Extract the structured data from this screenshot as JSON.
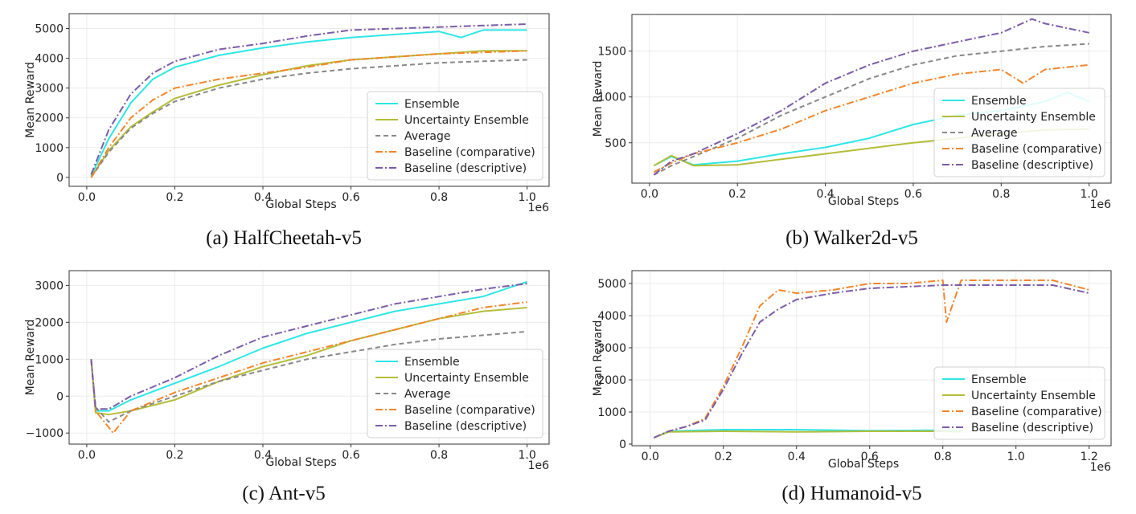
{
  "colors": {
    "Ensemble": "#2ee6e6",
    "Uncertainty Ensemble": "#b5bd3a",
    "Average": "#888888",
    "Baseline (comparative)": "#f2862b",
    "Baseline (descriptive)": "#7b5ca7"
  },
  "chart_data": [
    {
      "type": "line",
      "caption": "(a) HalfCheetah-v5",
      "xlabel": "Global Steps",
      "ylabel": "Mean Reward",
      "x_multiplier": "1e6",
      "xlim": [
        -0.04,
        1.05
      ],
      "ylim": [
        -300,
        5500
      ],
      "xticks": [
        0.0,
        0.2,
        0.4,
        0.6,
        0.8,
        1.0
      ],
      "xtick_labels": [
        "0.0",
        "0.2",
        "0.4",
        "0.6",
        "0.8",
        "1.0"
      ],
      "yticks": [
        0,
        1000,
        2000,
        3000,
        4000,
        5000
      ],
      "ytick_labels": [
        "0",
        "1000",
        "2000",
        "3000",
        "4000",
        "5000"
      ],
      "grid": true,
      "legend_position": "bottom-right",
      "legend": [
        "Ensemble",
        "Uncertainty Ensemble",
        "Average",
        "Baseline (comparative)",
        "Baseline (descriptive)"
      ],
      "series": [
        {
          "name": "Ensemble",
          "x": [
            0.01,
            0.05,
            0.1,
            0.15,
            0.2,
            0.3,
            0.4,
            0.5,
            0.6,
            0.7,
            0.8,
            0.85,
            0.9,
            1.0
          ],
          "y": [
            50,
            1300,
            2500,
            3300,
            3700,
            4100,
            4350,
            4550,
            4700,
            4800,
            4900,
            4700,
            4950,
            4950
          ]
        },
        {
          "name": "Uncertainty Ensemble",
          "x": [
            0.01,
            0.05,
            0.1,
            0.15,
            0.2,
            0.3,
            0.4,
            0.5,
            0.6,
            0.7,
            0.8,
            0.9,
            1.0
          ],
          "y": [
            0,
            900,
            1700,
            2200,
            2650,
            3100,
            3450,
            3750,
            3950,
            4050,
            4150,
            4250,
            4250
          ]
        },
        {
          "name": "Average",
          "x": [
            0.01,
            0.05,
            0.1,
            0.15,
            0.2,
            0.3,
            0.4,
            0.5,
            0.6,
            0.7,
            0.8,
            0.9,
            1.0
          ],
          "y": [
            0,
            850,
            1650,
            2150,
            2550,
            3000,
            3300,
            3500,
            3650,
            3750,
            3850,
            3900,
            3950
          ]
        },
        {
          "name": "Baseline (comparative)",
          "x": [
            0.01,
            0.05,
            0.1,
            0.15,
            0.2,
            0.3,
            0.4,
            0.5,
            0.6,
            0.7,
            0.8,
            0.9,
            1.0
          ],
          "y": [
            0,
            1000,
            2000,
            2600,
            3000,
            3300,
            3500,
            3700,
            3950,
            4050,
            4150,
            4200,
            4250
          ]
        },
        {
          "name": "Baseline (descriptive)",
          "x": [
            0.01,
            0.05,
            0.1,
            0.15,
            0.2,
            0.3,
            0.4,
            0.5,
            0.6,
            0.7,
            0.8,
            0.9,
            1.0
          ],
          "y": [
            100,
            1600,
            2800,
            3500,
            3900,
            4300,
            4500,
            4750,
            4950,
            5000,
            5050,
            5100,
            5150
          ]
        }
      ]
    },
    {
      "type": "line",
      "caption": "(b) Walker2d-v5",
      "xlabel": "Global Steps",
      "ylabel": "Mean Reward",
      "x_multiplier": "1e6",
      "xlim": [
        -0.04,
        1.05
      ],
      "ylim": [
        60,
        1900
      ],
      "xticks": [
        0.0,
        0.2,
        0.4,
        0.6,
        0.8,
        1.0
      ],
      "xtick_labels": [
        "0.0",
        "0.2",
        "0.4",
        "0.6",
        "0.8",
        "1.0"
      ],
      "yticks": [
        500,
        1000,
        1500
      ],
      "ytick_labels": [
        "500",
        "1000",
        "1500"
      ],
      "grid": true,
      "legend_position": "bottom-right",
      "legend": [
        "Ensemble",
        "Uncertainty Ensemble",
        "Average",
        "Baseline (comparative)",
        "Baseline (descriptive)"
      ],
      "series": [
        {
          "name": "Ensemble",
          "x": [
            0.01,
            0.05,
            0.1,
            0.2,
            0.3,
            0.4,
            0.5,
            0.6,
            0.7,
            0.8,
            0.9,
            0.95,
            1.0
          ],
          "y": [
            250,
            350,
            260,
            300,
            380,
            450,
            550,
            700,
            800,
            850,
            950,
            1050,
            950
          ]
        },
        {
          "name": "Uncertainty Ensemble",
          "x": [
            0.01,
            0.05,
            0.1,
            0.2,
            0.3,
            0.4,
            0.5,
            0.6,
            0.7,
            0.8,
            0.9,
            1.0
          ],
          "y": [
            250,
            360,
            250,
            260,
            320,
            380,
            440,
            500,
            550,
            600,
            640,
            650
          ]
        },
        {
          "name": "Average",
          "x": [
            0.01,
            0.05,
            0.1,
            0.2,
            0.3,
            0.4,
            0.5,
            0.6,
            0.7,
            0.8,
            0.9,
            1.0
          ],
          "y": [
            150,
            250,
            350,
            550,
            800,
            1000,
            1200,
            1350,
            1450,
            1500,
            1550,
            1580
          ]
        },
        {
          "name": "Baseline (comparative)",
          "x": [
            0.01,
            0.05,
            0.1,
            0.2,
            0.3,
            0.4,
            0.5,
            0.6,
            0.7,
            0.8,
            0.85,
            0.9,
            1.0
          ],
          "y": [
            180,
            280,
            380,
            500,
            650,
            850,
            1000,
            1150,
            1250,
            1300,
            1150,
            1300,
            1350
          ]
        },
        {
          "name": "Baseline (descriptive)",
          "x": [
            0.01,
            0.05,
            0.1,
            0.2,
            0.3,
            0.4,
            0.5,
            0.6,
            0.7,
            0.8,
            0.87,
            0.9,
            1.0
          ],
          "y": [
            150,
            300,
            380,
            600,
            850,
            1150,
            1350,
            1500,
            1600,
            1700,
            1850,
            1800,
            1700
          ]
        }
      ]
    },
    {
      "type": "line",
      "caption": "(c) Ant-v5",
      "xlabel": "Global Steps",
      "ylabel": "Mean Reward",
      "x_multiplier": "1e6",
      "xlim": [
        -0.04,
        1.05
      ],
      "ylim": [
        -1300,
        3400
      ],
      "xticks": [
        0.0,
        0.2,
        0.4,
        0.6,
        0.8,
        1.0
      ],
      "xtick_labels": [
        "0.0",
        "0.2",
        "0.4",
        "0.6",
        "0.8",
        "1.0"
      ],
      "yticks": [
        -1000,
        0,
        1000,
        2000,
        3000
      ],
      "ytick_labels": [
        "−1000",
        "0",
        "1000",
        "2000",
        "3000"
      ],
      "grid": true,
      "legend_position": "bottom-right",
      "legend": [
        "Ensemble",
        "Uncertainty Ensemble",
        "Average",
        "Baseline (comparative)",
        "Baseline (descriptive)"
      ],
      "series": [
        {
          "name": "Ensemble",
          "x": [
            0.01,
            0.02,
            0.05,
            0.1,
            0.2,
            0.3,
            0.4,
            0.5,
            0.6,
            0.7,
            0.8,
            0.9,
            1.0
          ],
          "y": [
            1000,
            -400,
            -400,
            -100,
            350,
            800,
            1300,
            1700,
            2000,
            2300,
            2500,
            2700,
            3100
          ]
        },
        {
          "name": "Uncertainty Ensemble",
          "x": [
            0.01,
            0.02,
            0.05,
            0.1,
            0.2,
            0.3,
            0.4,
            0.5,
            0.6,
            0.7,
            0.8,
            0.9,
            1.0
          ],
          "y": [
            1000,
            -450,
            -500,
            -400,
            -100,
            400,
            800,
            1100,
            1500,
            1800,
            2100,
            2300,
            2400
          ]
        },
        {
          "name": "Average",
          "x": [
            0.01,
            0.02,
            0.05,
            0.1,
            0.2,
            0.3,
            0.4,
            0.5,
            0.6,
            0.7,
            0.8,
            0.9,
            1.0
          ],
          "y": [
            1000,
            -300,
            -700,
            -400,
            0,
            400,
            700,
            1000,
            1200,
            1400,
            1550,
            1650,
            1750
          ]
        },
        {
          "name": "Baseline (comparative)",
          "x": [
            0.01,
            0.02,
            0.06,
            0.1,
            0.2,
            0.3,
            0.4,
            0.5,
            0.6,
            0.7,
            0.8,
            0.9,
            1.0
          ],
          "y": [
            1000,
            -400,
            -1000,
            -400,
            100,
            500,
            900,
            1200,
            1500,
            1800,
            2100,
            2400,
            2550
          ]
        },
        {
          "name": "Baseline (descriptive)",
          "x": [
            0.01,
            0.02,
            0.05,
            0.1,
            0.2,
            0.3,
            0.4,
            0.5,
            0.6,
            0.7,
            0.8,
            0.9,
            1.0
          ],
          "y": [
            1000,
            -350,
            -350,
            0,
            500,
            1100,
            1600,
            1900,
            2200,
            2500,
            2700,
            2900,
            3050
          ]
        }
      ]
    },
    {
      "type": "line",
      "caption": "(d) Humanoid-v5",
      "xlabel": "Global Steps",
      "ylabel": "Mean Reward",
      "x_multiplier": "1e6",
      "xlim": [
        -0.05,
        1.26
      ],
      "ylim": [
        -50,
        5400
      ],
      "xticks": [
        0.0,
        0.2,
        0.4,
        0.6,
        0.8,
        1.0,
        1.2
      ],
      "xtick_labels": [
        "0.0",
        "0.2",
        "0.4",
        "0.6",
        "0.8",
        "1.0",
        "1.2"
      ],
      "yticks": [
        0,
        1000,
        2000,
        3000,
        4000,
        5000
      ],
      "ytick_labels": [
        "0",
        "1000",
        "2000",
        "3000",
        "4000",
        "5000"
      ],
      "grid": true,
      "legend_position": "bottom-right",
      "legend": [
        "Ensemble",
        "Uncertainty Ensemble",
        "Baseline (comparative)",
        "Baseline (descriptive)"
      ],
      "series": [
        {
          "name": "Ensemble",
          "x": [
            0.01,
            0.05,
            0.2,
            0.4,
            0.6,
            0.8,
            0.85
          ],
          "y": [
            200,
            400,
            450,
            450,
            420,
            430,
            420
          ]
        },
        {
          "name": "Uncertainty Ensemble",
          "x": [
            0.01,
            0.05,
            0.2,
            0.4,
            0.6,
            0.8,
            0.85
          ],
          "y": [
            200,
            380,
            400,
            380,
            400,
            400,
            380
          ]
        },
        {
          "name": "Baseline (comparative)",
          "x": [
            0.01,
            0.05,
            0.1,
            0.15,
            0.2,
            0.25,
            0.3,
            0.35,
            0.4,
            0.5,
            0.6,
            0.7,
            0.8,
            0.81,
            0.85,
            0.9,
            1.0,
            1.1,
            1.2
          ],
          "y": [
            200,
            400,
            550,
            800,
            1800,
            3000,
            4300,
            4800,
            4700,
            4800,
            5000,
            5000,
            5100,
            3800,
            5100,
            5100,
            5100,
            5100,
            4800
          ]
        },
        {
          "name": "Baseline (descriptive)",
          "x": [
            0.01,
            0.05,
            0.1,
            0.15,
            0.2,
            0.25,
            0.3,
            0.35,
            0.4,
            0.5,
            0.6,
            0.7,
            0.8,
            0.9,
            1.0,
            1.1,
            1.2
          ],
          "y": [
            200,
            400,
            550,
            750,
            1700,
            2800,
            3800,
            4200,
            4500,
            4700,
            4850,
            4900,
            4950,
            4950,
            4950,
            4950,
            4700
          ]
        }
      ]
    }
  ]
}
